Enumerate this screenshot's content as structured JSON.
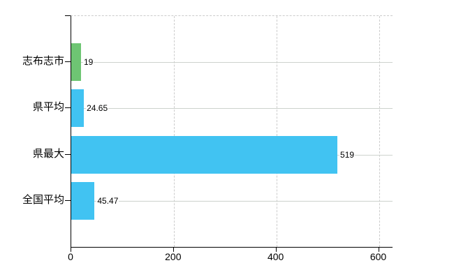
{
  "chart_data": {
    "type": "bar",
    "orientation": "horizontal",
    "title": "",
    "xlabel": "",
    "ylabel": "",
    "categories": [
      "志布志市",
      "県平均",
      "県最大",
      "全国平均"
    ],
    "values": [
      19,
      24.65,
      519,
      45.47
    ],
    "value_labels": [
      "19",
      "24.65",
      "519",
      "45.47"
    ],
    "bar_colors": [
      "#6ec573",
      "#41c3f2",
      "#41c3f2",
      "#41c3f2"
    ],
    "x_ticks": [
      0,
      200,
      400,
      600
    ],
    "x_tick_labels": [
      "0",
      "200",
      "400",
      "600"
    ],
    "xlim": [
      0,
      600
    ],
    "grid": true,
    "legend": false
  },
  "colors": {
    "highlight_bar": "#6ec573",
    "default_bar": "#41c3f2",
    "axis": "#000000",
    "gridline": "#cccccc",
    "background": "#ffffff",
    "text": "#000000"
  }
}
